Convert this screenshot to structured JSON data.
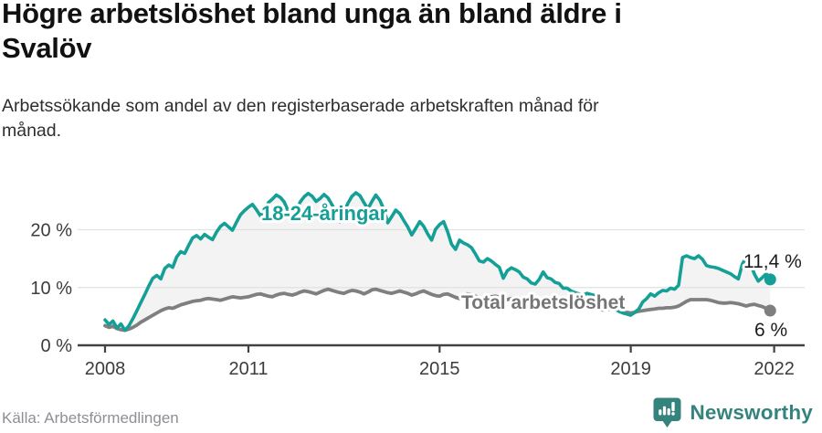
{
  "header": {
    "title_lines": [
      "Högre arbetslöshet bland unga än bland äldre i",
      "Svalöv"
    ],
    "subtitle_lines": [
      "Arbetssökande som andel av den registerbaserade arbetskraften månad för",
      "månad."
    ]
  },
  "footer": {
    "source": "Källa: Arbetsförmedlingen",
    "logo_text": "Newsworthy"
  },
  "colors": {
    "youth": "#14a096",
    "total": "#7f7f7f",
    "total_label": "#767676",
    "fill_between": "#f3f3f3",
    "gridline": "#e1e1e1",
    "axis": "#424242",
    "tick_label": "#3c3c3c",
    "end_label": "#1c1c1c",
    "logo": "#35837d"
  },
  "chart_data": {
    "type": "line",
    "title": "Högre arbetslöshet bland unga än bland äldre i Svalöv",
    "subtitle": "Arbetssökande som andel av den registerbaserade arbetskraften månad för månad.",
    "x_unit": "month",
    "x_start_year": 2008,
    "x_end": "2021-12",
    "ylim": [
      0,
      28
    ],
    "grid": "horizontal",
    "legend_position": "inline-labels",
    "yticks": [
      {
        "v": 0,
        "label": "0 %"
      },
      {
        "v": 10,
        "label": "10 %"
      },
      {
        "v": 20,
        "label": "20 %"
      }
    ],
    "xticks": [
      {
        "year": 2008,
        "label": "2008"
      },
      {
        "year": 2011,
        "label": "2011"
      },
      {
        "year": 2015,
        "label": "2015"
      },
      {
        "year": 2019,
        "label": "2019"
      },
      {
        "year": 2022,
        "label": "2022"
      }
    ],
    "series": [
      {
        "name": "18-24-åringar",
        "color_key": "youth",
        "end_label": "11,4 %",
        "values": [
          4.4,
          3.6,
          4.2,
          3.0,
          3.7,
          2.6,
          3.4,
          4.6,
          6.0,
          7.4,
          8.8,
          10.3,
          11.6,
          12.1,
          11.5,
          13.3,
          13.9,
          13.5,
          15.3,
          16.2,
          15.9,
          17.3,
          18.6,
          19.0,
          18.4,
          19.2,
          18.7,
          18.3,
          19.6,
          20.6,
          21.1,
          20.5,
          19.9,
          21.3,
          22.6,
          23.3,
          23.9,
          24.4,
          23.5,
          22.4,
          23.3,
          24.7,
          25.3,
          26.0,
          25.6,
          24.8,
          23.2,
          21.8,
          23.4,
          24.8,
          25.7,
          26.3,
          25.8,
          24.9,
          25.4,
          26.1,
          25.5,
          24.3,
          22.9,
          21.4,
          23.1,
          24.6,
          25.8,
          26.4,
          25.9,
          24.7,
          23.6,
          24.9,
          26.0,
          25.1,
          23.5,
          21.2,
          22.3,
          23.4,
          22.8,
          21.6,
          20.5,
          19.1,
          20.2,
          21.4,
          20.6,
          19.3,
          18.2,
          20.1,
          20.9,
          21.4,
          19.7,
          17.5,
          16.6,
          18.2,
          17.7,
          17.4,
          16.9,
          15.8,
          14.6,
          14.4,
          15.0,
          14.6,
          14.0,
          13.5,
          11.6,
          12.9,
          13.4,
          13.1,
          12.7,
          11.8,
          11.5,
          10.8,
          10.6,
          11.4,
          12.7,
          11.7,
          11.5,
          10.9,
          10.7,
          9.9,
          9.9,
          9.4,
          9.1,
          8.9,
          8.7,
          9.0,
          8.8,
          8.6,
          8.3,
          7.9,
          7.5,
          6.9,
          6.3,
          5.9,
          5.6,
          5.4,
          5.2,
          5.7,
          6.3,
          7.5,
          8.1,
          8.9,
          8.5,
          9.1,
          9.5,
          9.4,
          9.9,
          9.7,
          10.4,
          15.2,
          15.5,
          15.2,
          15.0,
          15.5,
          14.9,
          13.8,
          13.6,
          13.5,
          13.3,
          13.0,
          12.7,
          12.4,
          11.9,
          11.5,
          14.0,
          15.3,
          14.3,
          12.4,
          11.1,
          11.7,
          12.4,
          11.4
        ]
      },
      {
        "name": "Total arbetslöshet",
        "color_key": "total",
        "end_label": "6 %",
        "values": [
          3.4,
          3.1,
          3.3,
          2.9,
          2.7,
          2.6,
          2.8,
          3.1,
          3.5,
          4.0,
          4.4,
          4.8,
          5.2,
          5.6,
          6.0,
          6.3,
          6.5,
          6.4,
          6.7,
          7.0,
          7.2,
          7.4,
          7.6,
          7.7,
          7.8,
          8.0,
          8.1,
          8.0,
          7.9,
          7.8,
          8.0,
          8.2,
          8.4,
          8.3,
          8.2,
          8.3,
          8.4,
          8.6,
          8.8,
          8.9,
          8.7,
          8.5,
          8.4,
          8.7,
          8.9,
          9.0,
          8.8,
          8.7,
          8.9,
          9.2,
          9.4,
          9.3,
          9.1,
          8.9,
          9.2,
          9.5,
          9.7,
          9.5,
          9.3,
          9.1,
          9.0,
          9.3,
          9.5,
          9.4,
          9.2,
          8.9,
          9.2,
          9.6,
          9.7,
          9.5,
          9.3,
          9.1,
          9.0,
          9.2,
          9.4,
          9.2,
          9.0,
          8.7,
          8.9,
          9.2,
          9.4,
          9.1,
          8.8,
          8.6,
          8.5,
          8.8,
          8.9,
          8.6,
          8.3,
          8.1,
          8.4,
          8.9,
          8.8,
          8.5,
          8.2,
          8.1,
          8.2,
          8.4,
          8.5,
          8.3,
          8.1,
          7.9,
          8.1,
          8.3,
          8.2,
          8.0,
          7.8,
          7.7,
          7.6,
          7.7,
          7.8,
          7.6,
          7.4,
          7.2,
          7.3,
          7.4,
          7.3,
          7.1,
          6.9,
          6.8,
          6.7,
          6.8,
          6.7,
          6.5,
          6.3,
          6.1,
          6.2,
          6.3,
          6.2,
          6.0,
          5.8,
          5.7,
          5.6,
          5.7,
          5.9,
          6.0,
          6.1,
          6.2,
          6.3,
          6.4,
          6.4,
          6.5,
          6.5,
          6.6,
          6.8,
          7.2,
          7.6,
          7.9,
          7.9,
          7.9,
          7.9,
          7.9,
          7.8,
          7.6,
          7.4,
          7.3,
          7.3,
          7.4,
          7.3,
          7.2,
          7.0,
          6.8,
          7.0,
          7.1,
          6.9,
          6.7,
          6.4,
          6.0
        ]
      }
    ]
  }
}
